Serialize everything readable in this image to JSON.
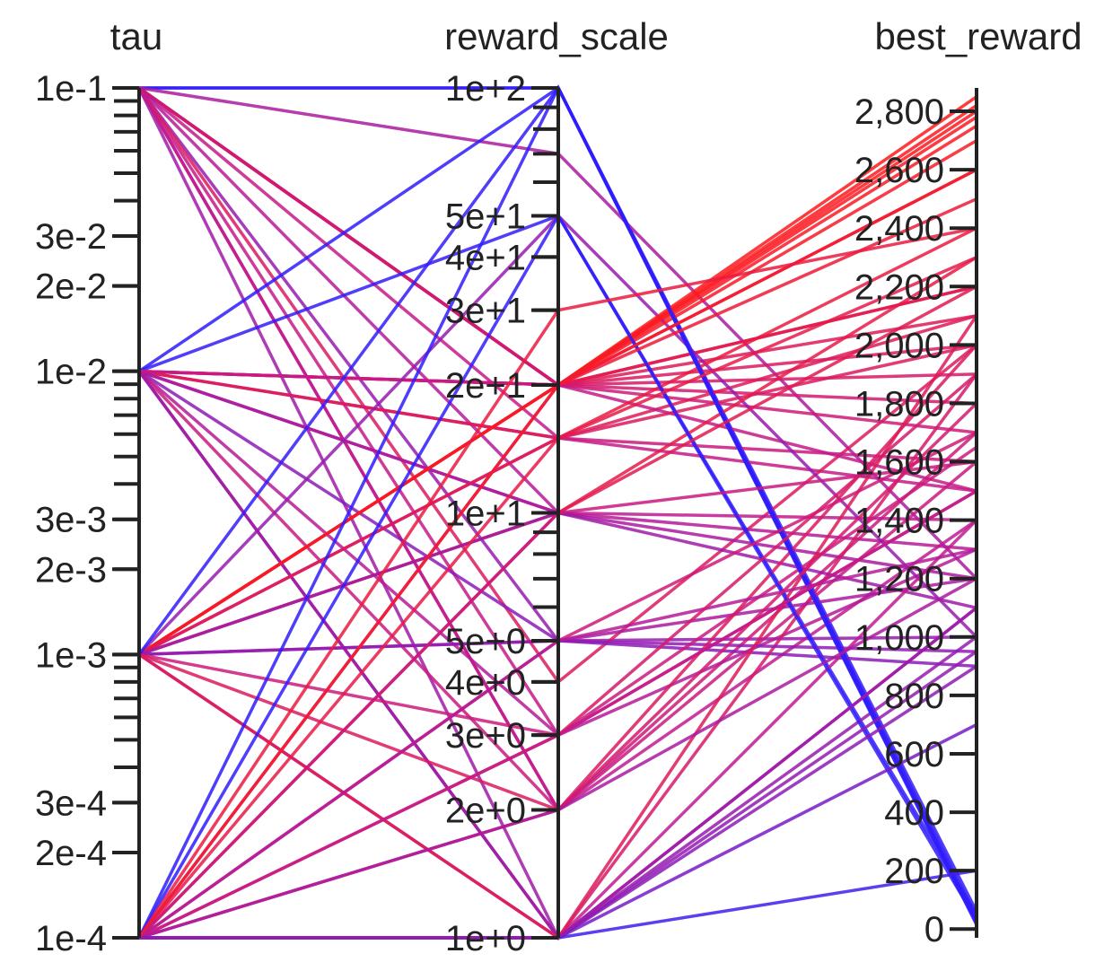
{
  "chart_data": {
    "type": "parallel_coordinates",
    "axes": [
      {
        "name": "tau",
        "scale": "log",
        "range": [
          0.0001,
          0.1
        ],
        "tick_labels": [
          {
            "value": 0.1,
            "label": "1e-1"
          },
          {
            "value": 0.03,
            "label": "3e-2"
          },
          {
            "value": 0.02,
            "label": "2e-2"
          },
          {
            "value": 0.01,
            "label": "1e-2"
          },
          {
            "value": 0.003,
            "label": "3e-3"
          },
          {
            "value": 0.002,
            "label": "2e-3"
          },
          {
            "value": 0.001,
            "label": "1e-3"
          },
          {
            "value": 0.0003,
            "label": "3e-4"
          },
          {
            "value": 0.0002,
            "label": "2e-4"
          },
          {
            "value": 0.0001,
            "label": "1e-4"
          }
        ]
      },
      {
        "name": "reward_scale",
        "scale": "log",
        "range": [
          1,
          100
        ],
        "tick_labels": [
          {
            "value": 100,
            "label": "1e+2"
          },
          {
            "value": 50,
            "label": "5e+1"
          },
          {
            "value": 40,
            "label": "4e+1"
          },
          {
            "value": 30,
            "label": "3e+1"
          },
          {
            "value": 20,
            "label": "2e+1"
          },
          {
            "value": 10,
            "label": "1e+1"
          },
          {
            "value": 5,
            "label": "5e+0"
          },
          {
            "value": 4,
            "label": "4e+0"
          },
          {
            "value": 3,
            "label": "3e+0"
          },
          {
            "value": 2,
            "label": "2e+0"
          },
          {
            "value": 1,
            "label": "1e+0"
          }
        ]
      },
      {
        "name": "best_reward",
        "scale": "linear",
        "range": [
          -30,
          2880
        ],
        "tick_labels": [
          {
            "value": 2800,
            "label": "2,800"
          },
          {
            "value": 2600,
            "label": "2,600"
          },
          {
            "value": 2400,
            "label": "2,400"
          },
          {
            "value": 2200,
            "label": "2,200"
          },
          {
            "value": 2000,
            "label": "2,000"
          },
          {
            "value": 1800,
            "label": "1,800"
          },
          {
            "value": 1600,
            "label": "1,600"
          },
          {
            "value": 1400,
            "label": "1,400"
          },
          {
            "value": 1200,
            "label": "1,200"
          },
          {
            "value": 1000,
            "label": "1,000"
          },
          {
            "value": 800,
            "label": "800"
          },
          {
            "value": 600,
            "label": "600"
          },
          {
            "value": 400,
            "label": "400"
          },
          {
            "value": 200,
            "label": "200"
          },
          {
            "value": 0,
            "label": "0"
          }
        ]
      }
    ],
    "color_scale": {
      "low": "#2a1cff",
      "mid": "#c21a8e",
      "high": "#ff1a1a",
      "domain_axis": "best_reward"
    },
    "lines": [
      [
        0.1,
        100,
        30
      ],
      [
        0.1,
        100,
        60
      ],
      [
        0.1,
        70,
        1200
      ],
      [
        0.1,
        20,
        2750
      ],
      [
        0.1,
        20,
        2800
      ],
      [
        0.1,
        20,
        2600
      ],
      [
        0.1,
        20,
        2200
      ],
      [
        0.1,
        20,
        2100
      ],
      [
        0.1,
        20,
        1900
      ],
      [
        0.1,
        20,
        1700
      ],
      [
        0.1,
        15,
        1500
      ],
      [
        0.1,
        10,
        1300
      ],
      [
        0.1,
        5,
        1000
      ],
      [
        0.1,
        3,
        1500
      ],
      [
        0.1,
        2,
        1700
      ],
      [
        0.1,
        1,
        1100
      ],
      [
        0.1,
        4,
        2000
      ],
      [
        0.1,
        2,
        1400
      ],
      [
        0.01,
        100,
        20
      ],
      [
        0.01,
        50,
        50
      ],
      [
        0.01,
        20,
        2200
      ],
      [
        0.01,
        20,
        2000
      ],
      [
        0.01,
        20,
        1800
      ],
      [
        0.01,
        15,
        1600
      ],
      [
        0.01,
        15,
        2100
      ],
      [
        0.01,
        10,
        1400
      ],
      [
        0.01,
        10,
        1200
      ],
      [
        0.01,
        5,
        900
      ],
      [
        0.01,
        3,
        1300
      ],
      [
        0.01,
        2,
        1600
      ],
      [
        0.01,
        1,
        1900
      ],
      [
        0.01,
        1,
        1000
      ],
      [
        0.01,
        20,
        1500
      ],
      [
        0.001,
        50,
        1000
      ],
      [
        0.001,
        20,
        2850
      ],
      [
        0.001,
        20,
        2820
      ],
      [
        0.001,
        20,
        2780
      ],
      [
        0.001,
        20,
        2700
      ],
      [
        0.001,
        15,
        2400
      ],
      [
        0.001,
        15,
        2000
      ],
      [
        0.001,
        10,
        2300
      ],
      [
        0.001,
        10,
        1100
      ],
      [
        0.001,
        5,
        1200
      ],
      [
        0.001,
        5,
        950
      ],
      [
        0.001,
        3,
        1650
      ],
      [
        0.001,
        2,
        2000
      ],
      [
        0.001,
        1,
        1400
      ],
      [
        0.001,
        100,
        40
      ],
      [
        0.001,
        1,
        2100
      ],
      [
        0.0001,
        100,
        15
      ],
      [
        0.0001,
        50,
        30
      ],
      [
        0.0001,
        20,
        2600
      ],
      [
        0.0001,
        20,
        2500
      ],
      [
        0.0001,
        15,
        2300
      ],
      [
        0.0001,
        10,
        2200
      ],
      [
        0.0001,
        10,
        1600
      ],
      [
        0.0001,
        5,
        1700
      ],
      [
        0.0001,
        5,
        1300
      ],
      [
        0.0001,
        3,
        1900
      ],
      [
        0.0001,
        3,
        1500
      ],
      [
        0.0001,
        2,
        1800
      ],
      [
        0.0001,
        2,
        1200
      ],
      [
        0.0001,
        1,
        950
      ],
      [
        0.0001,
        1,
        900
      ],
      [
        0.0001,
        1,
        700
      ],
      [
        0.0001,
        1,
        200
      ],
      [
        0.0001,
        1,
        1100
      ],
      [
        0.0001,
        30,
        2400
      ]
    ]
  }
}
